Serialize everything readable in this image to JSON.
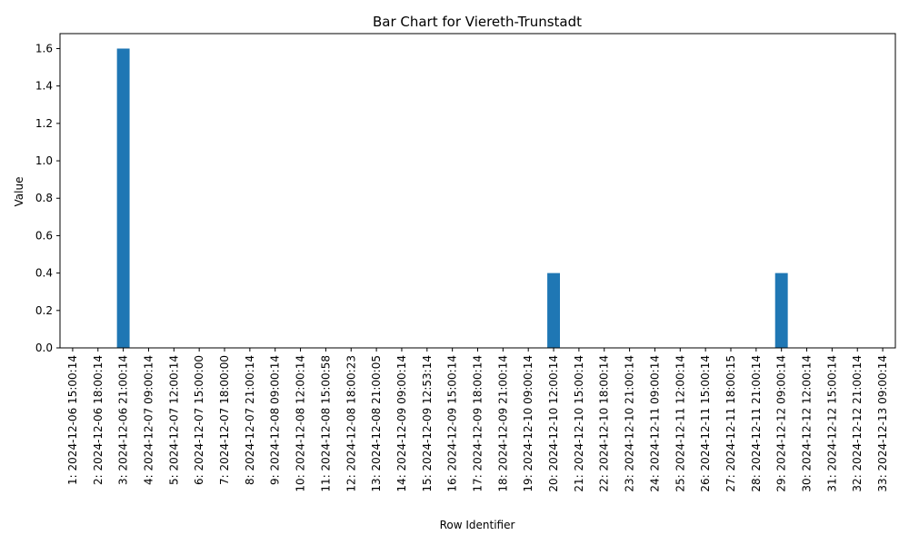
{
  "chart_data": {
    "type": "bar",
    "title": "Bar Chart for Viereth-Trunstadt",
    "xlabel": "Row Identifier",
    "ylabel": "Value",
    "ylim": [
      0,
      1.68
    ],
    "yticks": [
      "0.0",
      "0.2",
      "0.4",
      "0.6",
      "0.8",
      "1.0",
      "1.2",
      "1.4",
      "1.6"
    ],
    "grid": false,
    "legend": "none",
    "bar_color": "#1f77b4",
    "categories": [
      "1: 2024-12-06 15:00:14",
      "2: 2024-12-06 18:00:14",
      "3: 2024-12-06 21:00:14",
      "4: 2024-12-07 09:00:14",
      "5: 2024-12-07 12:00:14",
      "6: 2024-12-07 15:00:00",
      "7: 2024-12-07 18:00:00",
      "8: 2024-12-07 21:00:14",
      "9: 2024-12-08 09:00:14",
      "10: 2024-12-08 12:00:14",
      "11: 2024-12-08 15:00:58",
      "12: 2024-12-08 18:00:23",
      "13: 2024-12-08 21:00:05",
      "14: 2024-12-09 09:00:14",
      "15: 2024-12-09 12:53:14",
      "16: 2024-12-09 15:00:14",
      "17: 2024-12-09 18:00:14",
      "18: 2024-12-09 21:00:14",
      "19: 2024-12-10 09:00:14",
      "20: 2024-12-10 12:00:14",
      "21: 2024-12-10 15:00:14",
      "22: 2024-12-10 18:00:14",
      "23: 2024-12-10 21:00:14",
      "24: 2024-12-11 09:00:14",
      "25: 2024-12-11 12:00:14",
      "26: 2024-12-11 15:00:14",
      "27: 2024-12-11 18:00:15",
      "28: 2024-12-11 21:00:14",
      "29: 2024-12-12 09:00:14",
      "30: 2024-12-12 12:00:14",
      "31: 2024-12-12 15:00:14",
      "32: 2024-12-12 21:00:14",
      "33: 2024-12-13 09:00:14"
    ],
    "values": [
      0,
      0,
      1.6,
      0,
      0,
      0,
      0,
      0,
      0,
      0,
      0,
      0,
      0,
      0,
      0,
      0,
      0,
      0,
      0,
      0.4,
      0,
      0,
      0,
      0,
      0,
      0,
      0,
      0,
      0.4,
      0,
      0,
      0,
      0
    ]
  }
}
